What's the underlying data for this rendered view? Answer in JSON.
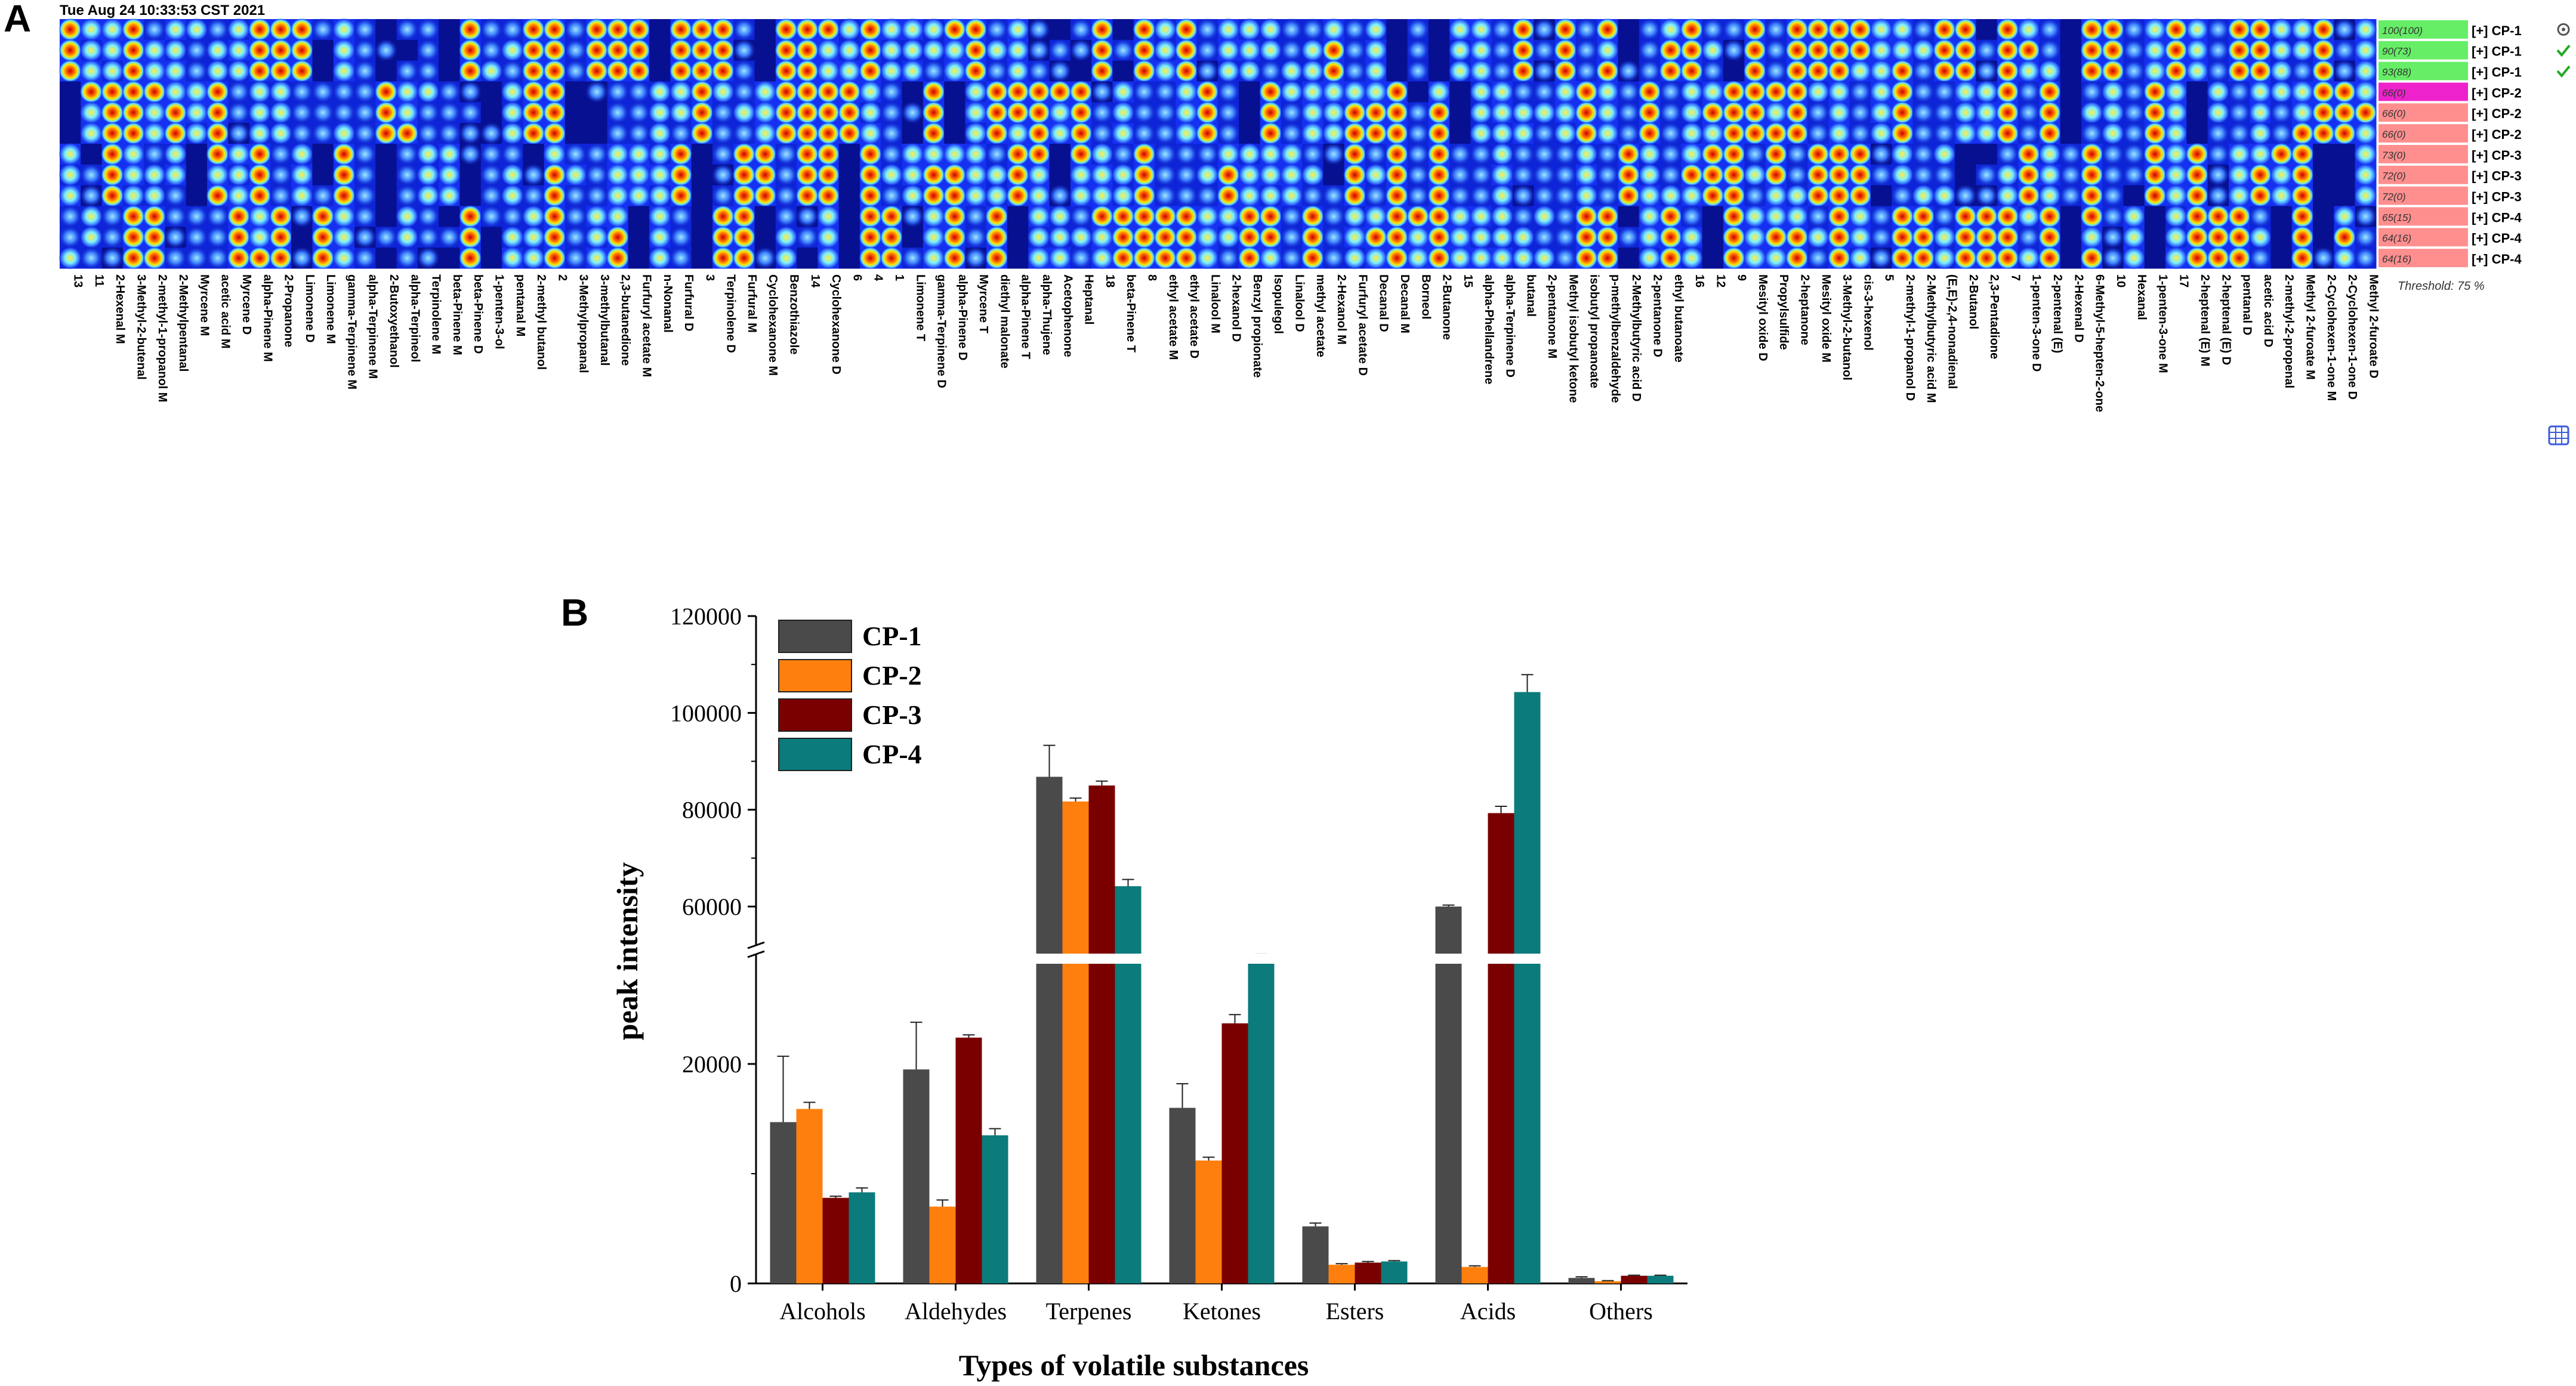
{
  "panel_a": {
    "letter": "A",
    "timestamp": "Tue Aug 24 10:33:53 CST 2021",
    "threshold": "Threshold: 75 %",
    "samples": [
      {
        "label": "[+] CP-1",
        "tag": "100(100)",
        "color": "#66ee66",
        "status_icon": "target-icon",
        "status_color": "#555555"
      },
      {
        "label": "[+] CP-1",
        "tag": "90(73)",
        "color": "#66ee66",
        "status_icon": "check-icon",
        "status_color": "#22aa22"
      },
      {
        "label": "[+] CP-1",
        "tag": "93(88)",
        "color": "#66ee66",
        "status_icon": "check-icon",
        "status_color": "#22aa22"
      },
      {
        "label": "[+] CP-2",
        "tag": "66(0)",
        "color": "#ee22cc",
        "status_icon": "",
        "status_color": ""
      },
      {
        "label": "[+] CP-2",
        "tag": "66(0)",
        "color": "#ff8f8f",
        "status_icon": "",
        "status_color": ""
      },
      {
        "label": "[+] CP-2",
        "tag": "66(0)",
        "color": "#ff8f8f",
        "status_icon": "",
        "status_color": ""
      },
      {
        "label": "[+] CP-3",
        "tag": "73(0)",
        "color": "#ff8f8f",
        "status_icon": "",
        "status_color": ""
      },
      {
        "label": "[+] CP-3",
        "tag": "72(0)",
        "color": "#ff8f8f",
        "status_icon": "",
        "status_color": ""
      },
      {
        "label": "[+] CP-3",
        "tag": "72(0)",
        "color": "#ff8f8f",
        "status_icon": "",
        "status_color": ""
      },
      {
        "label": "[+] CP-4",
        "tag": "65(15)",
        "color": "#ff8f8f",
        "status_icon": "",
        "status_color": ""
      },
      {
        "label": "[+] CP-4",
        "tag": "64(16)",
        "color": "#ff8f8f",
        "status_icon": "",
        "status_color": ""
      },
      {
        "label": "[+] CP-4",
        "tag": "64(16)",
        "color": "#ff8f8f",
        "status_icon": "",
        "status_color": ""
      }
    ],
    "compounds": [
      "13",
      "11",
      "2-Hexenal M",
      "3-Methyl-2-butenal",
      "2-methyl-1-propanol M",
      "2-Methylpentanal",
      "Myrcene M",
      "acetic acid M",
      "Myrcene D",
      "alpha-Pinene M",
      "2-Propanone",
      "Limonene D",
      "Limonene M",
      "gamma-Terpinene M",
      "alpha-Terpinene M",
      "2-Butoxyethanol",
      "alpha-Terpineol",
      "Terpinolene M",
      "beta-Pinene M",
      "beta-Pinene D",
      "1-penten-3-ol",
      "pentanal M",
      "2-methyl butanol",
      "2",
      "3-Methylpropanal",
      "3-methylbutanal",
      "2,3-butanedione",
      "Furfuryl acetate M",
      "n-Nonanal",
      "Furfural D",
      "3",
      "Terpinolene D",
      "Furfural M",
      "Cyclohexanone M",
      "Benzothiazole",
      "14",
      "Cyclohexanone D",
      "6",
      "4",
      "1",
      "Limonene T",
      "gamma-Terpinene D",
      "alpha-Pinene D",
      "Myrcene T",
      "diethyl malonate",
      "alpha-Pinene T",
      "alpha-Thujene",
      "Acetophenone",
      "Heptanal",
      "18",
      "beta-Pinene T",
      "8",
      "ethyl acetate M",
      "ethyl acetate D",
      "Linalool M",
      "2-hexanol D",
      "Benzyl propionate",
      "Isopulegol",
      "Linalool D",
      "methyl acetate",
      "2-Hexanol M",
      "Furfuryl acetate D",
      "Decanal D",
      "Decanal M",
      "Borneol",
      "2-Butanone",
      "15",
      "alpha-Phellandrene",
      "alpha-Terpinene D",
      "butanal",
      "2-pentanone M",
      "Methyl isobutyl ketone",
      "isobutyl propanoate",
      "p-methylbenzaldehyde",
      "2-Methylbutyric acid D",
      "2-pentanone D",
      "ethyl butanoate",
      "16",
      "12",
      "9",
      "Mesityl oxide D",
      "Propylsulfide",
      "2-heptanone",
      "Mesityl oxide M",
      "3-Methyl-2-butanol",
      "cis-3-hexenol",
      "5",
      "2-methyl-1-propanol D",
      "2-Methylbutyric acid M",
      "(E,E)-2,4-nonadienal",
      "2-Butanol",
      "2,3-Pentadione",
      "7",
      "1-penten-3-one D",
      "2-pentenal (E)",
      "2-Hexenal D",
      "6-Methyl-5-hepten-2-one",
      "10",
      "Hexanal",
      "1-penten-3-one M",
      "17",
      "2-heptenal (E) M",
      "2-heptenal (E) D",
      "pentanal D",
      "acetic acid D",
      "2-methyl-2-propenal",
      "Methyl 2-furoate M",
      "2-Cyclohexen-1-one M",
      "2-Cyclohexen-1-one D",
      "Methyl 2-furoate D"
    ],
    "grid_icon": "grid-icon"
  },
  "panel_b": {
    "letter": "B"
  },
  "chart_data": {
    "type": "bar",
    "title": "",
    "xlabel": "Types of volatile substances",
    "ylabel": "peak intensity",
    "categories": [
      "Alcohols",
      "Aldehydes",
      "Terpenes",
      "Ketones",
      "Esters",
      "Acids",
      "Others"
    ],
    "series": [
      {
        "name": "CP-1",
        "color": "#4a4a4a",
        "values": [
          14700,
          19500,
          86800,
          16000,
          5200,
          60000,
          500
        ],
        "errors": [
          6000,
          4300,
          6500,
          2200,
          300,
          300,
          100
        ]
      },
      {
        "name": "CP-2",
        "color": "#ff7f0e",
        "values": [
          15900,
          7000,
          81700,
          11200,
          1700,
          1500,
          200
        ],
        "errors": [
          600,
          600,
          700,
          300,
          100,
          100,
          50
        ]
      },
      {
        "name": "CP-3",
        "color": "#7a0000",
        "values": [
          7800,
          22400,
          85000,
          23700,
          1900,
          79300,
          700
        ],
        "errors": [
          150,
          250,
          900,
          800,
          100,
          1400,
          50
        ]
      },
      {
        "name": "CP-4",
        "color": "#0b7b7b",
        "values": [
          8300,
          13500,
          64200,
          29600,
          2000,
          104300,
          700
        ],
        "errors": [
          400,
          600,
          1400,
          500,
          80,
          3600,
          50
        ]
      }
    ],
    "y_segments": [
      {
        "range": [
          0,
          30000
        ],
        "ticks": [
          0,
          20000
        ]
      },
      {
        "range": [
          52000,
          120000
        ],
        "ticks": [
          60000,
          80000,
          100000,
          120000
        ]
      }
    ],
    "axis_break": [
      30000,
      52000
    ],
    "legend": "top-left"
  }
}
